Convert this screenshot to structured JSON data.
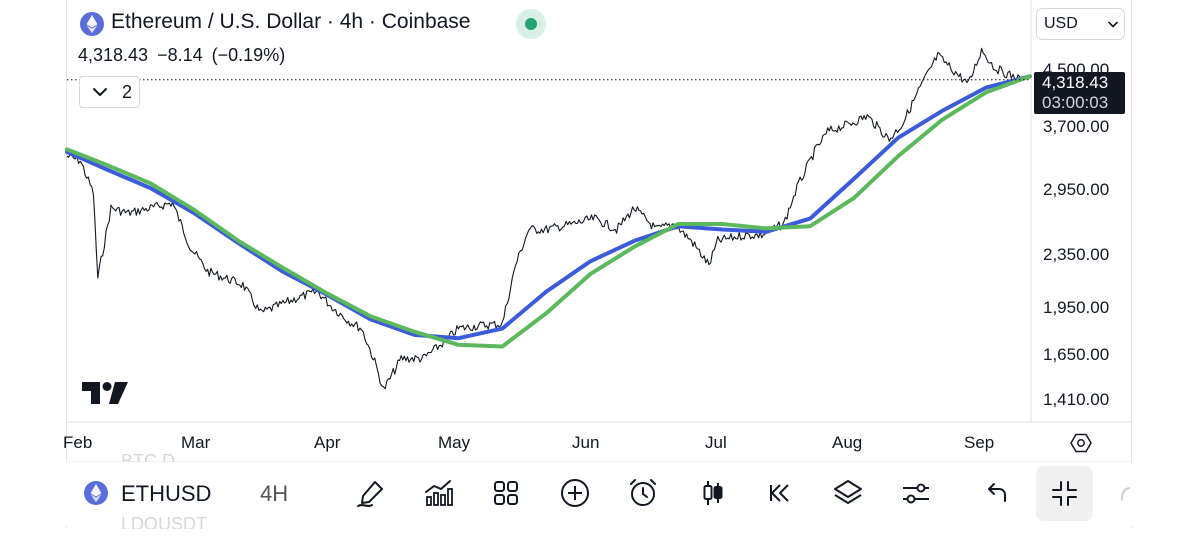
{
  "header": {
    "title": "Ethereum / U.S. Dollar · 4h · Coinbase",
    "price": "4,318.43",
    "change": "−8.14",
    "change_pct": "(−0.19%)",
    "indicator_count": "2",
    "status_color": "#26a27a"
  },
  "currency": {
    "selected": "USD"
  },
  "price_tag": {
    "price": "4,318.43",
    "countdown": "03:00:03"
  },
  "axis": {
    "y_ticks": [
      "4,500.00",
      "3,700.00",
      "2,950.00",
      "2,350.00",
      "1,950.00",
      "1,650.00",
      "1,410.00"
    ],
    "x_ticks": [
      "Feb",
      "Mar",
      "Apr",
      "May",
      "Jun",
      "Jul",
      "Aug",
      "Sep"
    ]
  },
  "bottom_bar": {
    "symbol": "ETHUSD",
    "interval": "4H",
    "ghost_above": "BTC.D",
    "ghost_below": "LDOUSDT",
    "tools": [
      "drawing-pen-icon",
      "indicators-icon",
      "grid-layout-icon",
      "add-circle-icon",
      "alarm-clock-icon",
      "candlestick-icon",
      "replay-icon",
      "layers-icon",
      "settings-sliders-icon",
      "undo-icon"
    ]
  },
  "chart_data": {
    "type": "line",
    "scale": "log",
    "ylim": [
      1380,
      4750
    ],
    "x_range": [
      "2025-01-27",
      "2025-09-03"
    ],
    "grid": false,
    "current_price": 4318.43,
    "price": {
      "x": [
        "2025-01-27",
        "2025-01-30",
        "2025-02-02",
        "2025-02-03",
        "2025-02-06",
        "2025-02-10",
        "2025-02-15",
        "2025-02-20",
        "2025-02-24",
        "2025-02-28",
        "2025-03-04",
        "2025-03-08",
        "2025-03-12",
        "2025-03-16",
        "2025-03-20",
        "2025-03-25",
        "2025-03-28",
        "2025-04-01",
        "2025-04-04",
        "2025-04-07",
        "2025-04-09",
        "2025-04-13",
        "2025-04-18",
        "2025-04-22",
        "2025-04-26",
        "2025-05-01",
        "2025-05-06",
        "2025-05-09",
        "2025-05-12",
        "2025-05-16",
        "2025-05-22",
        "2025-05-27",
        "2025-06-01",
        "2025-06-05",
        "2025-06-10",
        "2025-06-14",
        "2025-06-18",
        "2025-06-22",
        "2025-06-24",
        "2025-06-30",
        "2025-07-04",
        "2025-07-09",
        "2025-07-12",
        "2025-07-16",
        "2025-07-19",
        "2025-07-24",
        "2025-07-28",
        "2025-08-02",
        "2025-08-05",
        "2025-08-09",
        "2025-08-13",
        "2025-08-16",
        "2025-08-20",
        "2025-08-23",
        "2025-08-26",
        "2025-08-29",
        "2025-09-01"
      ],
      "y": [
        3300,
        3250,
        2900,
        2150,
        2750,
        2700,
        2750,
        2800,
        2400,
        2200,
        2150,
        2100,
        1900,
        1950,
        2000,
        2050,
        1950,
        1850,
        1800,
        1600,
        1450,
        1620,
        1620,
        1700,
        1800,
        1820,
        1830,
        2250,
        2550,
        2550,
        2600,
        2650,
        2550,
        2750,
        2550,
        2600,
        2450,
        2250,
        2450,
        2500,
        2500,
        2600,
        2950,
        3350,
        3600,
        3700,
        3800,
        3500,
        3700,
        4200,
        4700,
        4500,
        4250,
        4800,
        4500,
        4400,
        4318
      ]
    },
    "series": [
      {
        "color": "#3b5bdb",
        "x": [
          "2025-01-27",
          "2025-02-05",
          "2025-02-15",
          "2025-02-25",
          "2025-03-07",
          "2025-03-17",
          "2025-03-27",
          "2025-04-06",
          "2025-04-16",
          "2025-04-26",
          "2025-05-06",
          "2025-05-16",
          "2025-05-26",
          "2025-06-05",
          "2025-06-15",
          "2025-06-25",
          "2025-07-05",
          "2025-07-15",
          "2025-07-25",
          "2025-08-04",
          "2025-08-14",
          "2025-08-24",
          "2025-09-03"
        ],
        "y": [
          3350,
          3150,
          2950,
          2700,
          2430,
          2200,
          2030,
          1860,
          1760,
          1740,
          1800,
          2050,
          2280,
          2450,
          2580,
          2550,
          2530,
          2650,
          3050,
          3520,
          3870,
          4200,
          4370
        ]
      },
      {
        "color": "#5cb85c",
        "x": [
          "2025-01-27",
          "2025-02-05",
          "2025-02-15",
          "2025-02-25",
          "2025-03-07",
          "2025-03-17",
          "2025-03-27",
          "2025-04-06",
          "2025-04-16",
          "2025-04-26",
          "2025-05-06",
          "2025-05-16",
          "2025-05-26",
          "2025-06-05",
          "2025-06-15",
          "2025-06-25",
          "2025-07-05",
          "2025-07-15",
          "2025-07-25",
          "2025-08-04",
          "2025-08-14",
          "2025-08-24",
          "2025-09-03"
        ],
        "y": [
          3380,
          3200,
          3000,
          2730,
          2450,
          2230,
          2040,
          1880,
          1780,
          1700,
          1690,
          1900,
          2180,
          2400,
          2600,
          2600,
          2560,
          2580,
          2850,
          3300,
          3750,
          4130,
          4370
        ]
      }
    ]
  }
}
